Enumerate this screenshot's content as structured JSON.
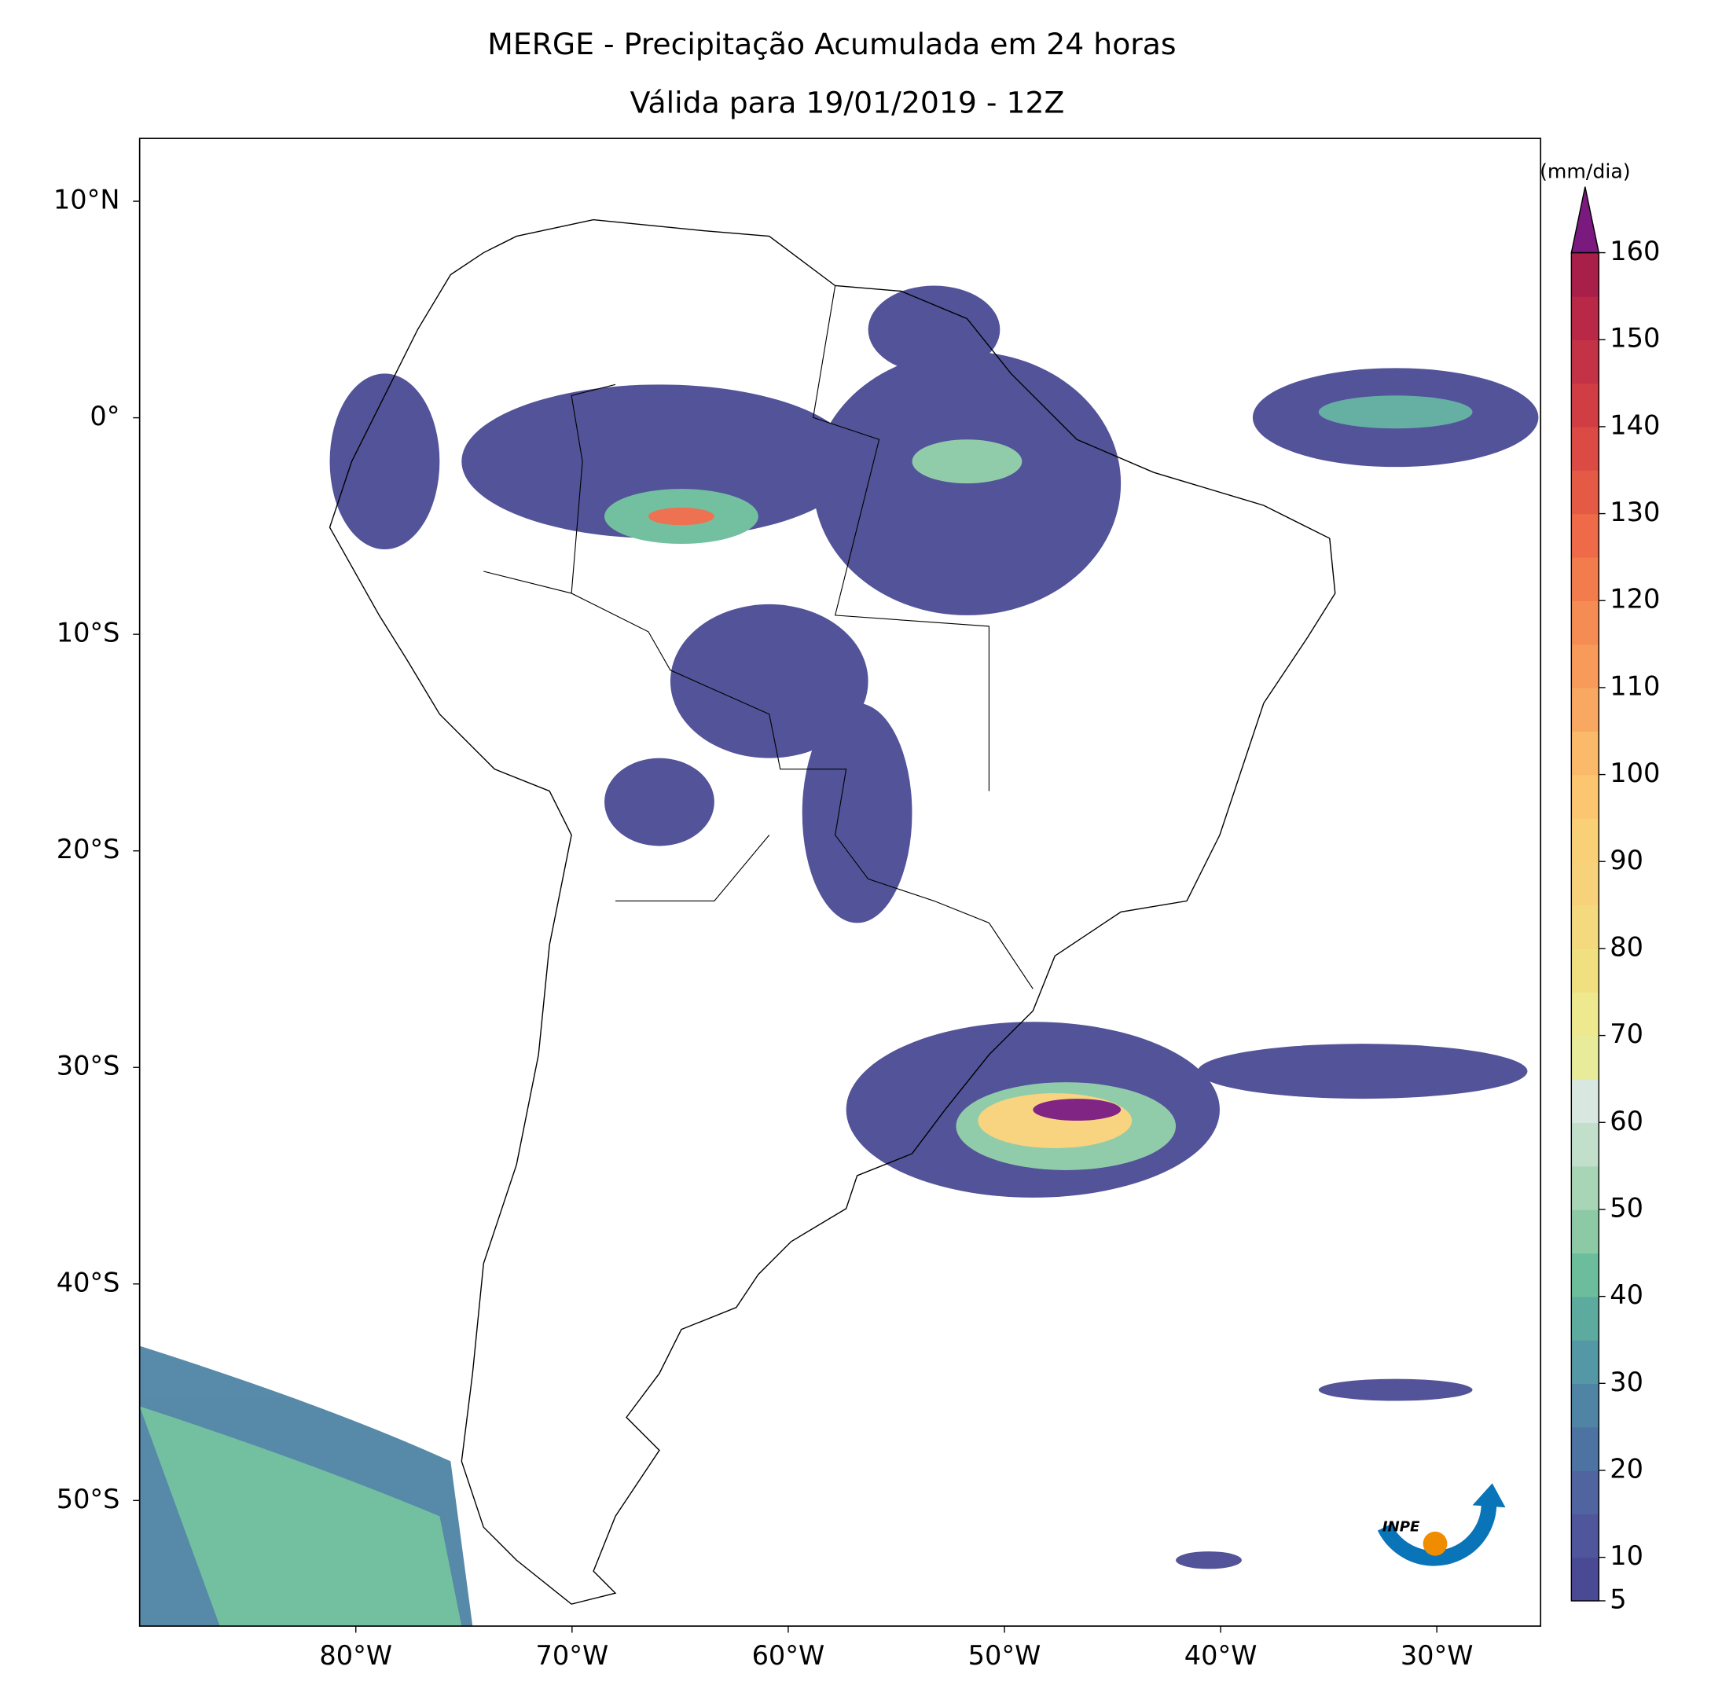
{
  "chart_data": {
    "type": "map",
    "title": "MERGE - Precipitação Acumulada em 24 horas",
    "subtitle": "Válida para 19/01/2019 - 12Z",
    "xlim": [
      -90,
      -25.2
    ],
    "ylim": [
      -55.8,
      12.9
    ],
    "xticks": [
      {
        "value": -80,
        "label": "80°W"
      },
      {
        "value": -70,
        "label": "70°W"
      },
      {
        "value": -60,
        "label": "60°W"
      },
      {
        "value": -50,
        "label": "50°W"
      },
      {
        "value": -40,
        "label": "40°W"
      },
      {
        "value": -30,
        "label": "30°W"
      }
    ],
    "yticks": [
      {
        "value": 10,
        "label": "10°N"
      },
      {
        "value": 0,
        "label": "0°"
      },
      {
        "value": -10,
        "label": "10°S"
      },
      {
        "value": -20,
        "label": "20°S"
      },
      {
        "value": -30,
        "label": "30°S"
      },
      {
        "value": -40,
        "label": "40°S"
      },
      {
        "value": -50,
        "label": "50°S"
      }
    ],
    "colorbar": {
      "label": "(mm/dia)",
      "levels": [
        5,
        10,
        15,
        20,
        25,
        30,
        35,
        40,
        45,
        50,
        55,
        60,
        65,
        70,
        75,
        80,
        85,
        90,
        95,
        100,
        105,
        110,
        115,
        120,
        125,
        130,
        135,
        140,
        145,
        150,
        155,
        160
      ],
      "colors": [
        "#4a4a94",
        "#4f569b",
        "#5064a0",
        "#4d73a3",
        "#4f84a5",
        "#5598a5",
        "#5dab9f",
        "#6cbd9c",
        "#8ccaa6",
        "#a8d5b5",
        "#c2dfcc",
        "#d8e8e0",
        "#e8ec9a",
        "#eee88f",
        "#f0e080",
        "#f5d97f",
        "#f8d27b",
        "#fad077",
        "#fbc66f",
        "#fbb96a",
        "#f9a862",
        "#f79a5a",
        "#f58c53",
        "#f37c4d",
        "#ee6a48",
        "#e55a45",
        "#db4b44",
        "#d03e44",
        "#c43245",
        "#b92847",
        "#a81f4a"
      ],
      "extend_color": "#7a1a7e",
      "ticks": [
        5,
        10,
        20,
        30,
        40,
        50,
        60,
        70,
        80,
        90,
        100,
        110,
        120,
        130,
        140,
        150,
        160
      ]
    },
    "logo": "INPE"
  }
}
